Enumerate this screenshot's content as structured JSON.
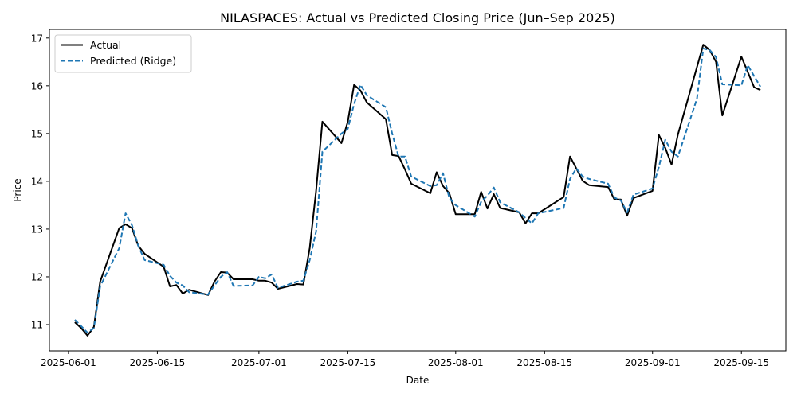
{
  "chart_data": {
    "type": "line",
    "title": "NILASPACES: Actual vs Predicted Closing Price (Jun–Sep 2025)",
    "xlabel": "Date",
    "ylabel": "Price",
    "xlim": [
      "2025-05-29",
      "2025-09-22"
    ],
    "ylim": [
      10.45,
      17.18
    ],
    "x_ticks": [
      "2025-06-01",
      "2025-06-15",
      "2025-07-01",
      "2025-07-15",
      "2025-08-01",
      "2025-08-15",
      "2025-09-01",
      "2025-09-15"
    ],
    "y_ticks": [
      11,
      12,
      13,
      14,
      15,
      16,
      17
    ],
    "grid": false,
    "legend_position": "upper-left",
    "series": [
      {
        "name": "Actual",
        "color": "#000000",
        "dash": "solid",
        "points": [
          [
            "2025-06-02",
            11.05
          ],
          [
            "2025-06-03",
            10.93
          ],
          [
            "2025-06-04",
            10.77
          ],
          [
            "2025-06-05",
            10.95
          ],
          [
            "2025-06-06",
            11.9
          ],
          [
            "2025-06-09",
            13.02
          ],
          [
            "2025-06-10",
            13.1
          ],
          [
            "2025-06-11",
            13.02
          ],
          [
            "2025-06-12",
            12.65
          ],
          [
            "2025-06-13",
            12.48
          ],
          [
            "2025-06-16",
            12.21
          ],
          [
            "2025-06-17",
            11.8
          ],
          [
            "2025-06-18",
            11.83
          ],
          [
            "2025-06-19",
            11.65
          ],
          [
            "2025-06-20",
            11.73
          ],
          [
            "2025-06-23",
            11.62
          ],
          [
            "2025-06-24",
            11.9
          ],
          [
            "2025-06-25",
            12.1
          ],
          [
            "2025-06-26",
            12.09
          ],
          [
            "2025-06-27",
            11.95
          ],
          [
            "2025-06-30",
            11.95
          ],
          [
            "2025-07-01",
            11.92
          ],
          [
            "2025-07-02",
            11.92
          ],
          [
            "2025-07-03",
            11.88
          ],
          [
            "2025-07-04",
            11.75
          ],
          [
            "2025-07-07",
            11.85
          ],
          [
            "2025-07-08",
            11.84
          ],
          [
            "2025-07-09",
            12.6
          ],
          [
            "2025-07-10",
            13.8
          ],
          [
            "2025-07-11",
            15.25
          ],
          [
            "2025-07-14",
            14.8
          ],
          [
            "2025-07-15",
            15.25
          ],
          [
            "2025-07-16",
            16.02
          ],
          [
            "2025-07-17",
            15.9
          ],
          [
            "2025-07-18",
            15.65
          ],
          [
            "2025-07-21",
            15.3
          ],
          [
            "2025-07-22",
            14.55
          ],
          [
            "2025-07-23",
            14.53
          ],
          [
            "2025-07-24",
            14.25
          ],
          [
            "2025-07-25",
            13.95
          ],
          [
            "2025-07-28",
            13.75
          ],
          [
            "2025-07-29",
            14.19
          ],
          [
            "2025-07-30",
            13.9
          ],
          [
            "2025-07-31",
            13.75
          ],
          [
            "2025-08-01",
            13.31
          ],
          [
            "2025-08-04",
            13.31
          ],
          [
            "2025-08-05",
            13.78
          ],
          [
            "2025-08-06",
            13.43
          ],
          [
            "2025-08-07",
            13.73
          ],
          [
            "2025-08-08",
            13.44
          ],
          [
            "2025-08-11",
            13.35
          ],
          [
            "2025-08-12",
            13.12
          ],
          [
            "2025-08-13",
            13.33
          ],
          [
            "2025-08-14",
            13.33
          ],
          [
            "2025-08-18",
            13.67
          ],
          [
            "2025-08-19",
            14.52
          ],
          [
            "2025-08-20",
            14.27
          ],
          [
            "2025-08-21",
            14.01
          ],
          [
            "2025-08-22",
            13.92
          ],
          [
            "2025-08-25",
            13.88
          ],
          [
            "2025-08-26",
            13.62
          ],
          [
            "2025-08-27",
            13.62
          ],
          [
            "2025-08-28",
            13.28
          ],
          [
            "2025-08-29",
            13.65
          ],
          [
            "2025-09-01",
            13.8
          ],
          [
            "2025-09-02",
            14.97
          ],
          [
            "2025-09-03",
            14.7
          ],
          [
            "2025-09-04",
            14.35
          ],
          [
            "2025-09-05",
            14.98
          ],
          [
            "2025-09-09",
            16.86
          ],
          [
            "2025-09-10",
            16.75
          ],
          [
            "2025-09-11",
            16.5
          ],
          [
            "2025-09-12",
            15.38
          ],
          [
            "2025-09-15",
            16.61
          ],
          [
            "2025-09-17",
            15.97
          ],
          [
            "2025-09-18",
            15.91
          ]
        ]
      },
      {
        "name": "Predicted (Ridge)",
        "color": "#1f77b4",
        "dash": "dashed",
        "points": [
          [
            "2025-06-02",
            11.1
          ],
          [
            "2025-06-03",
            10.97
          ],
          [
            "2025-06-04",
            10.83
          ],
          [
            "2025-06-05",
            10.93
          ],
          [
            "2025-06-06",
            11.8
          ],
          [
            "2025-06-09",
            12.6
          ],
          [
            "2025-06-10",
            13.33
          ],
          [
            "2025-06-11",
            13.08
          ],
          [
            "2025-06-12",
            12.65
          ],
          [
            "2025-06-13",
            12.35
          ],
          [
            "2025-06-16",
            12.25
          ],
          [
            "2025-06-17",
            12.02
          ],
          [
            "2025-06-18",
            11.88
          ],
          [
            "2025-06-19",
            11.82
          ],
          [
            "2025-06-20",
            11.68
          ],
          [
            "2025-06-23",
            11.63
          ],
          [
            "2025-06-24",
            11.82
          ],
          [
            "2025-06-25",
            12.0
          ],
          [
            "2025-06-26",
            12.1
          ],
          [
            "2025-06-27",
            11.81
          ],
          [
            "2025-06-30",
            11.82
          ],
          [
            "2025-07-01",
            12.0
          ],
          [
            "2025-07-02",
            11.97
          ],
          [
            "2025-07-03",
            12.05
          ],
          [
            "2025-07-04",
            11.77
          ],
          [
            "2025-07-07",
            11.9
          ],
          [
            "2025-07-08",
            11.92
          ],
          [
            "2025-07-09",
            12.35
          ],
          [
            "2025-07-10",
            12.95
          ],
          [
            "2025-07-11",
            14.62
          ],
          [
            "2025-07-14",
            15.0
          ],
          [
            "2025-07-15",
            15.1
          ],
          [
            "2025-07-16",
            15.62
          ],
          [
            "2025-07-17",
            16.02
          ],
          [
            "2025-07-18",
            15.8
          ],
          [
            "2025-07-21",
            15.55
          ],
          [
            "2025-07-22",
            15.0
          ],
          [
            "2025-07-23",
            14.52
          ],
          [
            "2025-07-24",
            14.52
          ],
          [
            "2025-07-25",
            14.1
          ],
          [
            "2025-07-28",
            13.9
          ],
          [
            "2025-07-29",
            13.92
          ],
          [
            "2025-07-30",
            14.17
          ],
          [
            "2025-07-31",
            13.65
          ],
          [
            "2025-08-01",
            13.5
          ],
          [
            "2025-08-04",
            13.26
          ],
          [
            "2025-08-05",
            13.57
          ],
          [
            "2025-08-06",
            13.7
          ],
          [
            "2025-08-07",
            13.87
          ],
          [
            "2025-08-08",
            13.56
          ],
          [
            "2025-08-11",
            13.35
          ],
          [
            "2025-08-12",
            13.23
          ],
          [
            "2025-08-13",
            13.12
          ],
          [
            "2025-08-14",
            13.33
          ],
          [
            "2025-08-18",
            13.44
          ],
          [
            "2025-08-19",
            14.05
          ],
          [
            "2025-08-20",
            14.27
          ],
          [
            "2025-08-21",
            14.1
          ],
          [
            "2025-08-22",
            14.05
          ],
          [
            "2025-08-25",
            13.95
          ],
          [
            "2025-08-26",
            13.66
          ],
          [
            "2025-08-27",
            13.6
          ],
          [
            "2025-08-28",
            13.35
          ],
          [
            "2025-08-29",
            13.72
          ],
          [
            "2025-09-01",
            13.85
          ],
          [
            "2025-09-02",
            14.3
          ],
          [
            "2025-09-03",
            14.87
          ],
          [
            "2025-09-04",
            14.62
          ],
          [
            "2025-09-05",
            14.52
          ],
          [
            "2025-09-08",
            15.73
          ],
          [
            "2025-09-09",
            16.78
          ],
          [
            "2025-09-10",
            16.75
          ],
          [
            "2025-09-11",
            16.6
          ],
          [
            "2025-09-12",
            16.03
          ],
          [
            "2025-09-15",
            16.01
          ],
          [
            "2025-09-16",
            16.43
          ],
          [
            "2025-09-18",
            15.98
          ]
        ]
      }
    ]
  }
}
